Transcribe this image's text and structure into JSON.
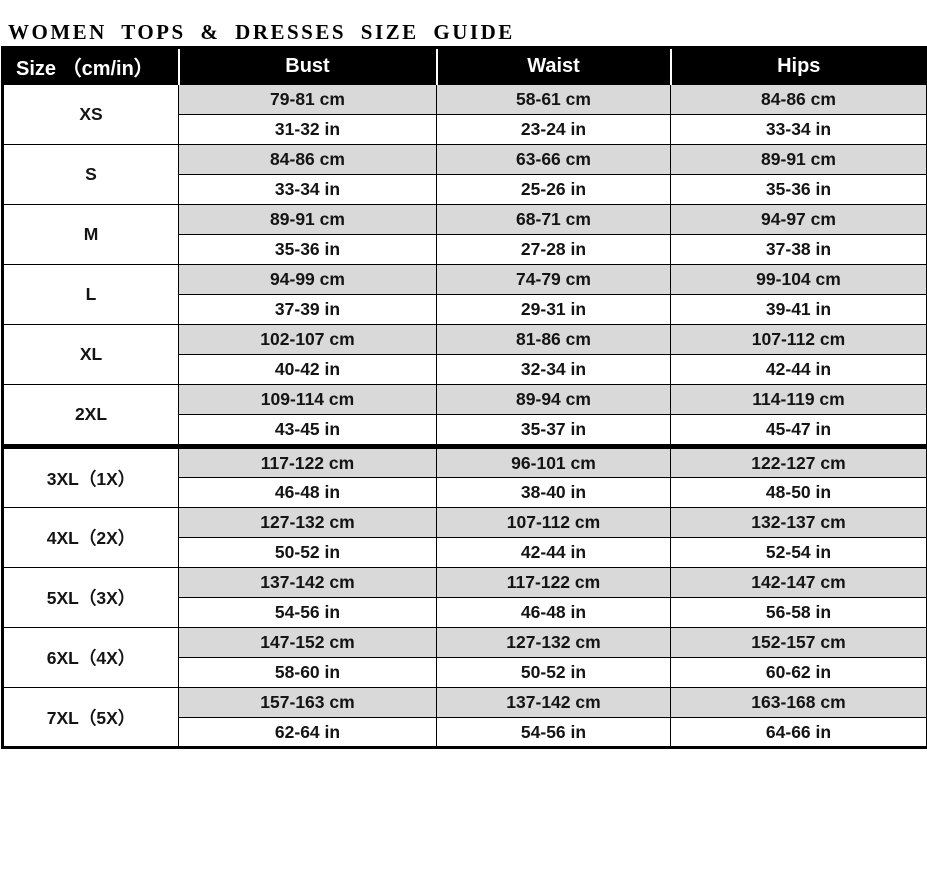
{
  "title": "WOMEN TOPS & DRESSES SIZE GUIDE",
  "table": {
    "headers": [
      "Size （cm/in）",
      "Bust",
      "Waist",
      "Hips"
    ],
    "columns": [
      "Bust",
      "Waist",
      "Hips"
    ],
    "divider_after_index": 5,
    "sizes": [
      {
        "label": "XS",
        "cm": [
          "79-81 cm",
          "58-61 cm",
          "84-86 cm"
        ],
        "in": [
          "31-32 in",
          "23-24 in",
          "33-34 in"
        ]
      },
      {
        "label": "S",
        "cm": [
          "84-86 cm",
          "63-66 cm",
          "89-91 cm"
        ],
        "in": [
          "33-34 in",
          "25-26 in",
          "35-36 in"
        ]
      },
      {
        "label": "M",
        "cm": [
          "89-91 cm",
          "68-71 cm",
          "94-97 cm"
        ],
        "in": [
          "35-36 in",
          "27-28 in",
          "37-38 in"
        ]
      },
      {
        "label": "L",
        "cm": [
          "94-99 cm",
          "74-79 cm",
          "99-104 cm"
        ],
        "in": [
          "37-39 in",
          "29-31 in",
          "39-41 in"
        ]
      },
      {
        "label": "XL",
        "cm": [
          "102-107 cm",
          "81-86 cm",
          "107-112 cm"
        ],
        "in": [
          "40-42 in",
          "32-34 in",
          "42-44 in"
        ]
      },
      {
        "label": "2XL",
        "cm": [
          "109-114 cm",
          "89-94 cm",
          "114-119 cm"
        ],
        "in": [
          "43-45 in",
          "35-37 in",
          "45-47 in"
        ]
      },
      {
        "label": "3XL（1X）",
        "cm": [
          "117-122 cm",
          "96-101 cm",
          "122-127 cm"
        ],
        "in": [
          "46-48 in",
          "38-40 in",
          "48-50 in"
        ]
      },
      {
        "label": "4XL（2X）",
        "cm": [
          "127-132 cm",
          "107-112 cm",
          "132-137 cm"
        ],
        "in": [
          "50-52 in",
          "42-44 in",
          "52-54 in"
        ]
      },
      {
        "label": "5XL（3X）",
        "cm": [
          "137-142 cm",
          "117-122 cm",
          "142-147 cm"
        ],
        "in": [
          "54-56 in",
          "46-48 in",
          "56-58 in"
        ]
      },
      {
        "label": "6XL（4X）",
        "cm": [
          "147-152 cm",
          "127-132 cm",
          "152-157 cm"
        ],
        "in": [
          "58-60 in",
          "50-52 in",
          "60-62 in"
        ]
      },
      {
        "label": "7XL（5X）",
        "cm": [
          "157-163 cm",
          "137-142 cm",
          "163-168 cm"
        ],
        "in": [
          "62-64 in",
          "54-56 in",
          "64-66 in"
        ]
      }
    ],
    "colors": {
      "header_bg": "#000000",
      "header_text": "#ffffff",
      "cm_row_bg": "#d9d9d9",
      "in_row_bg": "#ffffff",
      "border": "#000000",
      "divider_fill": "#c9c9c9"
    }
  }
}
